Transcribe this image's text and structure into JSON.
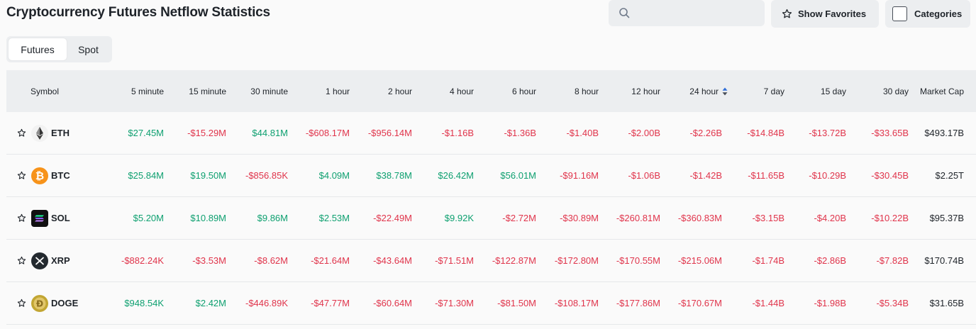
{
  "page": {
    "title": "Cryptocurrency Futures Netflow Statistics"
  },
  "toolbar": {
    "search_placeholder": "",
    "favorites_label": "Show Favorites",
    "categories_label": "Categories"
  },
  "tabs": [
    {
      "label": "Futures",
      "active": true
    },
    {
      "label": "Spot",
      "active": false
    }
  ],
  "colors": {
    "positive": "#0ea070",
    "negative": "#e0344b",
    "header_bg": "#eceef0",
    "sort_active": "#2f6ed8"
  },
  "table": {
    "headers": [
      "Symbol",
      "5 minute",
      "15 minute",
      "30 minute",
      "1 hour",
      "2 hour",
      "4 hour",
      "6 hour",
      "8 hour",
      "12 hour",
      "24 hour",
      "7 day",
      "15 day",
      "30 day",
      "Market Cap"
    ],
    "sorted_column": "24 hour",
    "rows": [
      {
        "symbol": "ETH",
        "icon": "eth-icon",
        "values": [
          "$27.45M",
          "-$15.29M",
          "$44.81M",
          "-$608.17M",
          "-$956.14M",
          "-$1.16B",
          "-$1.36B",
          "-$1.40B",
          "-$2.00B",
          "-$2.26B",
          "-$14.84B",
          "-$13.72B",
          "-$33.65B"
        ],
        "market_cap": "$493.17B"
      },
      {
        "symbol": "BTC",
        "icon": "btc-icon",
        "values": [
          "$25.84M",
          "$19.50M",
          "-$856.85K",
          "$4.09M",
          "$38.78M",
          "$26.42M",
          "$56.01M",
          "-$91.16M",
          "-$1.06B",
          "-$1.42B",
          "-$11.65B",
          "-$10.29B",
          "-$30.45B"
        ],
        "market_cap": "$2.25T"
      },
      {
        "symbol": "SOL",
        "icon": "sol-icon",
        "values": [
          "$5.20M",
          "$10.89M",
          "$9.86M",
          "$2.53M",
          "-$22.49M",
          "$9.92K",
          "-$2.72M",
          "-$30.89M",
          "-$260.81M",
          "-$360.83M",
          "-$3.15B",
          "-$4.20B",
          "-$10.22B"
        ],
        "market_cap": "$95.37B"
      },
      {
        "symbol": "XRP",
        "icon": "xrp-icon",
        "values": [
          "-$882.24K",
          "-$3.53M",
          "-$8.62M",
          "-$21.64M",
          "-$43.64M",
          "-$71.51M",
          "-$122.87M",
          "-$172.80M",
          "-$170.55M",
          "-$215.06M",
          "-$1.74B",
          "-$2.86B",
          "-$7.82B"
        ],
        "market_cap": "$170.74B"
      },
      {
        "symbol": "DOGE",
        "icon": "doge-icon",
        "values": [
          "$948.54K",
          "$2.42M",
          "-$446.89K",
          "-$47.77M",
          "-$60.64M",
          "-$71.30M",
          "-$81.50M",
          "-$108.17M",
          "-$177.86M",
          "-$170.67M",
          "-$1.44B",
          "-$1.98B",
          "-$5.34B"
        ],
        "market_cap": "$31.65B"
      }
    ]
  }
}
